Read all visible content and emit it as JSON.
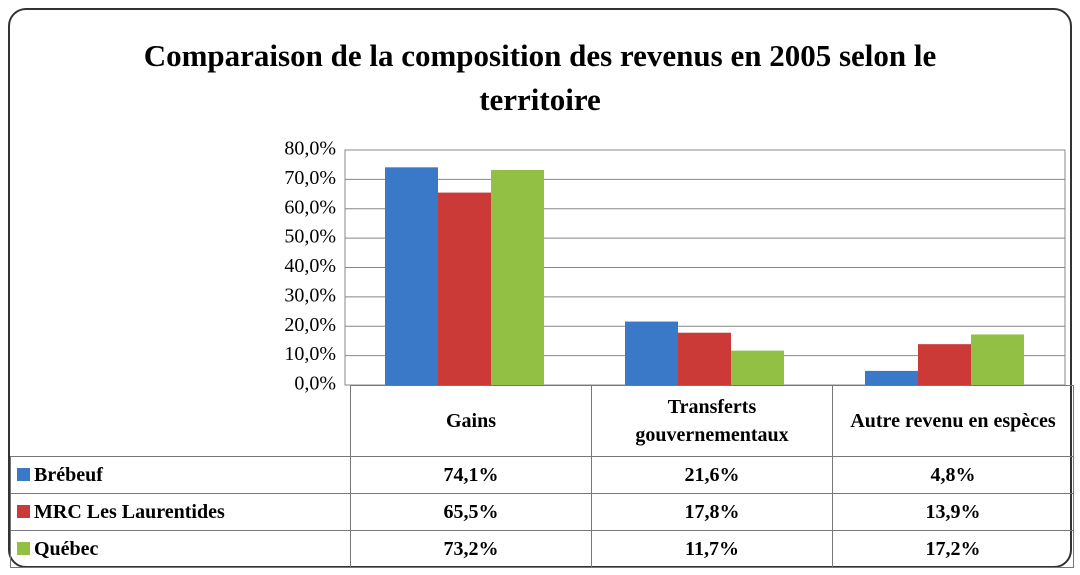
{
  "chart_data": {
    "type": "bar",
    "title": "Comparaison de la composition des revenus en 2005 selon le territoire",
    "categories": [
      "Gains",
      "Transferts gouvernementaux",
      "Autre revenu en espèces"
    ],
    "series": [
      {
        "name": "Brébeuf",
        "color": "#3a78c8",
        "values": [
          74.1,
          21.6,
          4.8
        ],
        "value_labels": [
          "74,1%",
          "21,6%",
          "4,8%"
        ]
      },
      {
        "name": "MRC Les Laurentides",
        "color": "#cc3a38",
        "values": [
          65.5,
          17.8,
          13.9
        ],
        "value_labels": [
          "65,5%",
          "17,8%",
          "13,9%"
        ]
      },
      {
        "name": "Québec",
        "color": "#92c045",
        "values": [
          73.2,
          11.7,
          17.2
        ],
        "value_labels": [
          "73,2%",
          "11,7%",
          "17,2%"
        ]
      }
    ],
    "ylim": [
      0,
      80
    ],
    "yticks": [
      {
        "value": 0,
        "label": "0,0%"
      },
      {
        "value": 10,
        "label": "10,0%"
      },
      {
        "value": 20,
        "label": "20,0%"
      },
      {
        "value": 30,
        "label": "30,0%"
      },
      {
        "value": 40,
        "label": "40,0%"
      },
      {
        "value": 50,
        "label": "50,0%"
      },
      {
        "value": 60,
        "label": "60,0%"
      },
      {
        "value": 70,
        "label": "70,0%"
      },
      {
        "value": 80,
        "label": "80,0%"
      }
    ],
    "grid": true
  }
}
